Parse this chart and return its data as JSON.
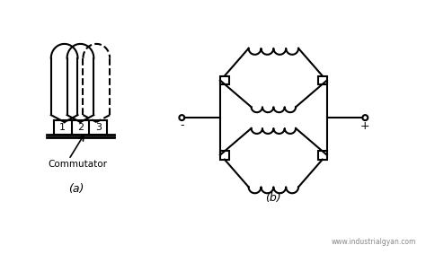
{
  "background_color": "#ffffff",
  "line_color": "#000000",
  "label_a": "(a)",
  "label_b": "(b)",
  "commutator_label": "Commutator",
  "watermark": "www.industrialgyan.com",
  "minus_label": "-",
  "plus_label": "+"
}
